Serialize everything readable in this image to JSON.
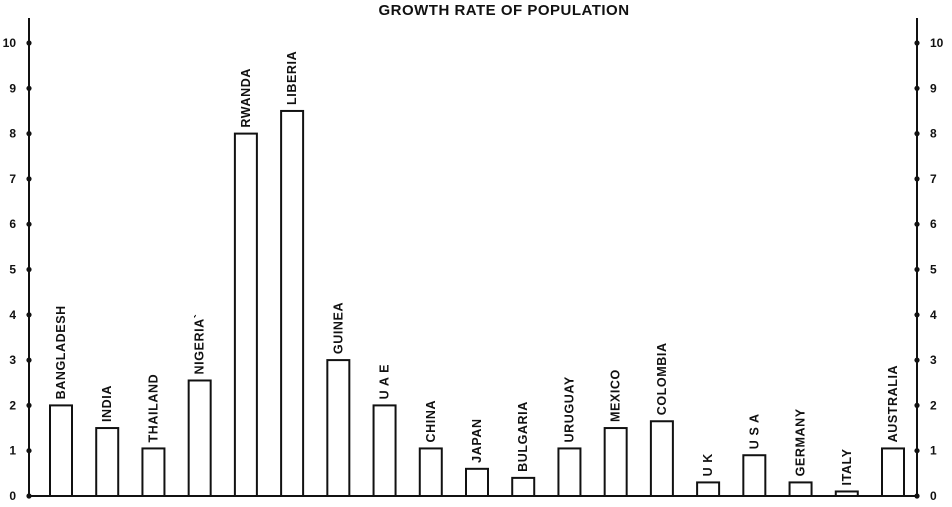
{
  "chart_data": {
    "type": "bar",
    "title": "GROWTH RATE OF POPULATION",
    "xlabel": "",
    "ylabel": "",
    "ylim": [
      0,
      10
    ],
    "yticks": [
      "0",
      "1",
      "2",
      "3",
      "4",
      "5",
      "6",
      "7",
      "8",
      "9",
      "10"
    ],
    "dual_y_axis": true,
    "grid": false,
    "categories": [
      "BANGLADESH",
      "INDIA",
      "THAILAND",
      "NIGERIA`",
      "RWANDA",
      "LIBERIA",
      "GUINEA",
      "U A E",
      "CHINA",
      "JAPAN",
      "BULGARIA",
      "URUGUAY",
      "MEXICO",
      "COLOMBIA",
      "U K",
      "U S A",
      "GERMANY",
      "ITALY",
      "AUSTRALIA"
    ],
    "values": [
      2.0,
      1.5,
      1.05,
      2.55,
      8.0,
      8.5,
      3.0,
      2.0,
      1.05,
      0.6,
      0.4,
      1.05,
      1.5,
      1.65,
      0.3,
      0.9,
      0.3,
      0.1,
      1.05
    ]
  }
}
